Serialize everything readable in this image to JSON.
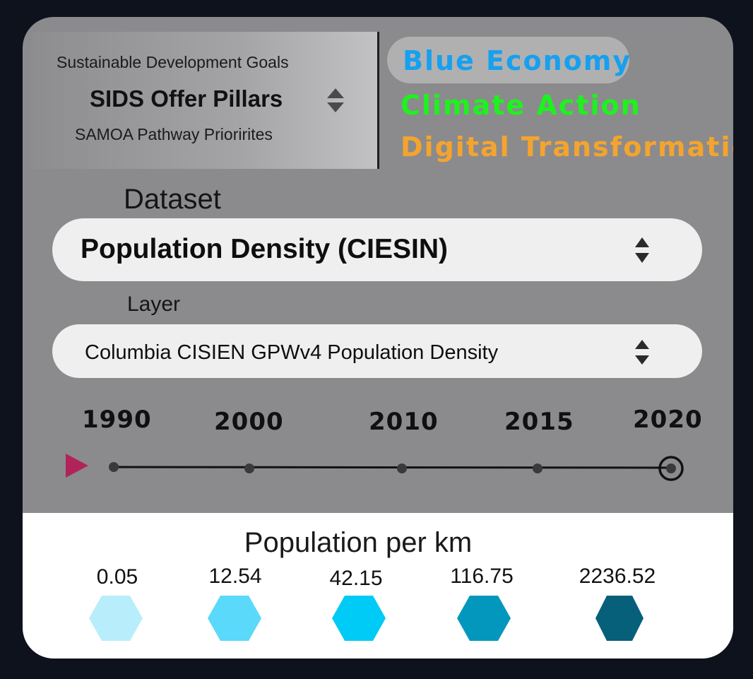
{
  "pillars": {
    "line_top": "Sustainable Development Goals",
    "selected": "SIDS Offer Pillars",
    "line_bottom": "SAMOA Pathway Priorirites"
  },
  "categories": [
    {
      "label": "Blue Economy",
      "color": "#16a0f0"
    },
    {
      "label": "Climate Action",
      "color": "#1ef21e"
    },
    {
      "label": "Digital Transformation",
      "color": "#f4a42e"
    }
  ],
  "dataset": {
    "label": "Dataset",
    "value": "Population Density (CIESIN)"
  },
  "layer": {
    "label": "Layer",
    "value": "Columbia CISIEN GPWv4 Population Density"
  },
  "timeline": {
    "years": [
      "1990",
      "2000",
      "2010",
      "2015",
      "2020"
    ],
    "selected": "2020",
    "play_color": "#b0245a"
  },
  "legend": {
    "title": "Population per km",
    "items": [
      {
        "value": "0.05",
        "color": "#b8eefb"
      },
      {
        "value": "12.54",
        "color": "#5ad9fa"
      },
      {
        "value": "42.15",
        "color": "#00cbf6"
      },
      {
        "value": "116.75",
        "color": "#0397bd"
      },
      {
        "value": "2236.52",
        "color": "#06607a"
      }
    ]
  }
}
